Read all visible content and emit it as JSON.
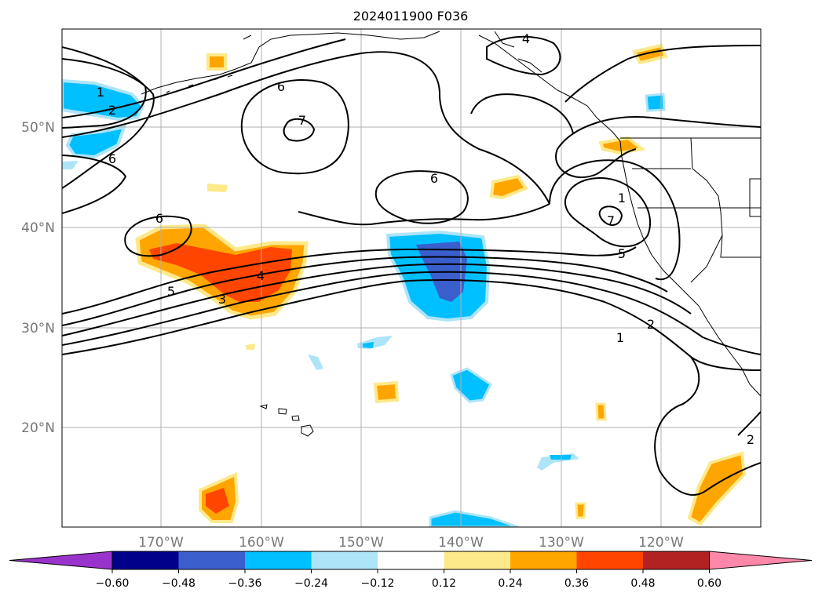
{
  "title": "2024011900 F036",
  "map": {
    "lat_labels": [
      "50°N",
      "40°N",
      "30°N",
      "20°N"
    ],
    "lon_labels": [
      "170°W",
      "160°W",
      "150°W",
      "140°W",
      "130°W",
      "120°W"
    ],
    "contour_labels": [
      "1",
      "2",
      "6",
      "7",
      "6",
      "4",
      "6",
      "6",
      "7",
      "5",
      "5",
      "4",
      "3",
      "1",
      "2",
      "2",
      "1"
    ],
    "colors": {
      "neg_060": "#9933cc",
      "neg_048": "#00008b",
      "neg_036": "#3a5fcd",
      "neg_024": "#00bfff",
      "neg_012": "#aee4f8",
      "pos_012": "#fde98a",
      "pos_024": "#ffa500",
      "pos_036": "#ff4500",
      "pos_048": "#b22222",
      "pos_060": "#ff88aa",
      "lat_label": "#777777",
      "lon_label": "#777777"
    }
  },
  "colorbar": {
    "ticks": [
      "−0.60",
      "−0.48",
      "−0.36",
      "−0.24",
      "−0.12",
      "0.12",
      "0.24",
      "0.36",
      "0.48",
      "0.60"
    ],
    "bins": [
      "#9933cc",
      "#00008b",
      "#3a5fcd",
      "#00bfff",
      "#aee4f8",
      "#ffffff",
      "#fde98a",
      "#ffa500",
      "#ff4500",
      "#b22222",
      "#ff88aa"
    ]
  }
}
